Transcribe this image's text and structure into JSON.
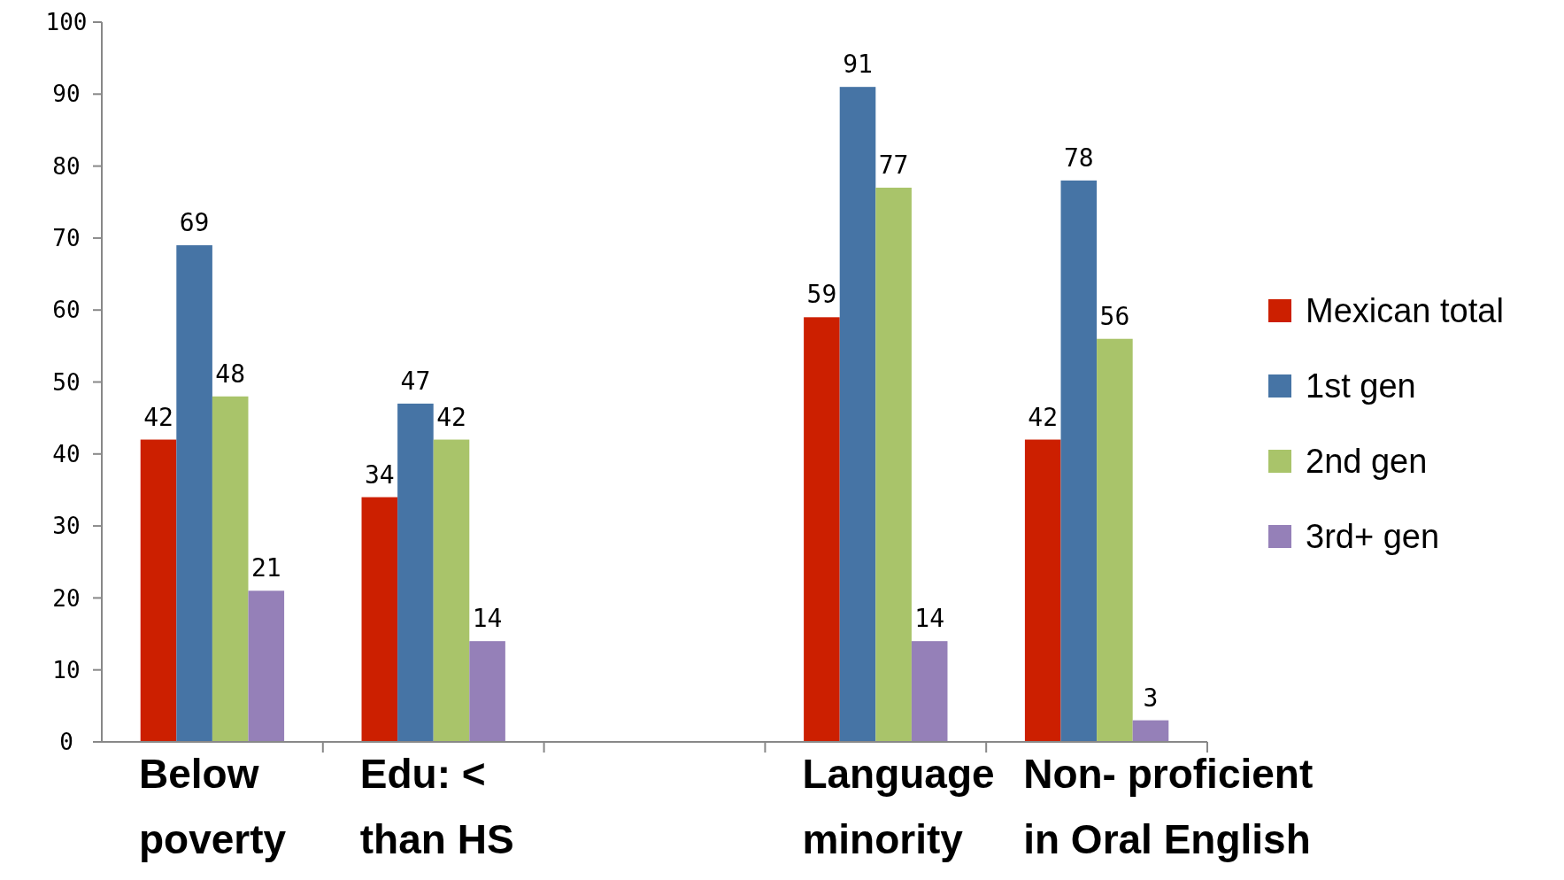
{
  "chart_data": {
    "type": "bar",
    "categories": [
      "Below poverty",
      "Edu: < than HS",
      null,
      "Language minority",
      "Non- proficient in Oral English"
    ],
    "series": [
      {
        "name": "Mexican total",
        "color": "#cc1f00",
        "values": [
          42,
          34,
          null,
          59,
          42
        ]
      },
      {
        "name": "1st gen",
        "color": "#4674a5",
        "values": [
          69,
          47,
          null,
          91,
          78
        ]
      },
      {
        "name": "2nd gen",
        "color": "#a9c46a",
        "values": [
          48,
          42,
          null,
          77,
          56
        ]
      },
      {
        "name": "3rd+ gen",
        "color": "#9580b8",
        "values": [
          21,
          14,
          null,
          14,
          3
        ]
      }
    ],
    "ylim": [
      0,
      100
    ],
    "yticks": [
      0,
      10,
      20,
      30,
      40,
      50,
      60,
      70,
      80,
      90,
      100
    ],
    "data_labels": true,
    "legend": "right",
    "grid": false
  }
}
